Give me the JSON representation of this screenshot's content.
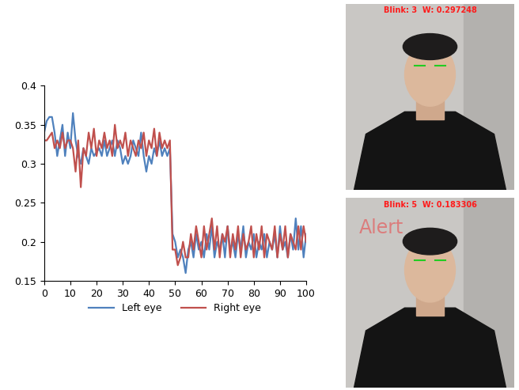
{
  "chart_data": {
    "type": "line",
    "x": [
      0,
      1,
      2,
      3,
      4,
      5,
      6,
      7,
      8,
      9,
      10,
      11,
      12,
      13,
      14,
      15,
      16,
      17,
      18,
      19,
      20,
      21,
      22,
      23,
      24,
      25,
      26,
      27,
      28,
      29,
      30,
      31,
      32,
      33,
      34,
      35,
      36,
      37,
      38,
      39,
      40,
      41,
      42,
      43,
      44,
      45,
      46,
      47,
      48,
      49,
      50,
      51,
      52,
      53,
      54,
      55,
      56,
      57,
      58,
      59,
      60,
      61,
      62,
      63,
      64,
      65,
      66,
      67,
      68,
      69,
      70,
      71,
      72,
      73,
      74,
      75,
      76,
      77,
      78,
      79,
      80,
      81,
      82,
      83,
      84,
      85,
      86,
      87,
      88,
      89,
      90,
      91,
      92,
      93,
      94,
      95,
      96,
      97,
      98,
      99,
      100
    ],
    "series": [
      {
        "name": "Left eye",
        "color": "#4f81bd",
        "values": [
          0.34,
          0.355,
          0.36,
          0.36,
          0.34,
          0.31,
          0.33,
          0.35,
          0.31,
          0.34,
          0.32,
          0.365,
          0.33,
          0.31,
          0.3,
          0.32,
          0.31,
          0.3,
          0.32,
          0.31,
          0.315,
          0.32,
          0.31,
          0.33,
          0.31,
          0.32,
          0.33,
          0.31,
          0.33,
          0.32,
          0.3,
          0.31,
          0.3,
          0.31,
          0.33,
          0.32,
          0.31,
          0.34,
          0.31,
          0.29,
          0.31,
          0.3,
          0.32,
          0.31,
          0.33,
          0.31,
          0.32,
          0.31,
          0.32,
          0.21,
          0.2,
          0.18,
          0.19,
          0.18,
          0.16,
          0.19,
          0.2,
          0.18,
          0.21,
          0.19,
          0.2,
          0.18,
          0.21,
          0.19,
          0.22,
          0.18,
          0.2,
          0.19,
          0.21,
          0.18,
          0.22,
          0.19,
          0.2,
          0.18,
          0.21,
          0.19,
          0.22,
          0.18,
          0.2,
          0.19,
          0.21,
          0.18,
          0.2,
          0.19,
          0.21,
          0.18,
          0.2,
          0.19,
          0.21,
          0.18,
          0.22,
          0.19,
          0.2,
          0.18,
          0.21,
          0.19,
          0.23,
          0.19,
          0.22,
          0.18,
          0.21
        ]
      },
      {
        "name": "Right eye",
        "color": "#c0504d",
        "values": [
          0.33,
          0.33,
          0.335,
          0.34,
          0.32,
          0.33,
          0.32,
          0.34,
          0.32,
          0.33,
          0.33,
          0.32,
          0.29,
          0.33,
          0.27,
          0.32,
          0.31,
          0.34,
          0.32,
          0.345,
          0.31,
          0.33,
          0.32,
          0.34,
          0.32,
          0.33,
          0.31,
          0.35,
          0.32,
          0.33,
          0.32,
          0.34,
          0.31,
          0.33,
          0.32,
          0.31,
          0.33,
          0.32,
          0.34,
          0.31,
          0.33,
          0.32,
          0.345,
          0.31,
          0.34,
          0.32,
          0.33,
          0.32,
          0.33,
          0.19,
          0.19,
          0.17,
          0.18,
          0.2,
          0.18,
          0.18,
          0.21,
          0.19,
          0.22,
          0.2,
          0.18,
          0.22,
          0.19,
          0.21,
          0.23,
          0.19,
          0.22,
          0.18,
          0.21,
          0.2,
          0.22,
          0.18,
          0.21,
          0.19,
          0.22,
          0.18,
          0.21,
          0.19,
          0.2,
          0.22,
          0.18,
          0.21,
          0.19,
          0.22,
          0.18,
          0.21,
          0.2,
          0.19,
          0.22,
          0.18,
          0.21,
          0.19,
          0.22,
          0.18,
          0.21,
          0.2,
          0.19,
          0.22,
          0.19,
          0.22,
          0.2
        ]
      }
    ],
    "xlim": [
      0,
      100
    ],
    "xticks": [
      0,
      10,
      20,
      30,
      40,
      50,
      60,
      70,
      80,
      90,
      100
    ],
    "ylim": [
      0.15,
      0.4
    ],
    "yticks": [
      0.15,
      0.2,
      0.25,
      0.3,
      0.35,
      0.4
    ],
    "grid": false,
    "legend": "bottom"
  },
  "photos": [
    {
      "caption": "Blink: 3  W: 0.297248"
    },
    {
      "caption": "Blink: 5  W: 0.183306",
      "alert": "Alert"
    }
  ]
}
